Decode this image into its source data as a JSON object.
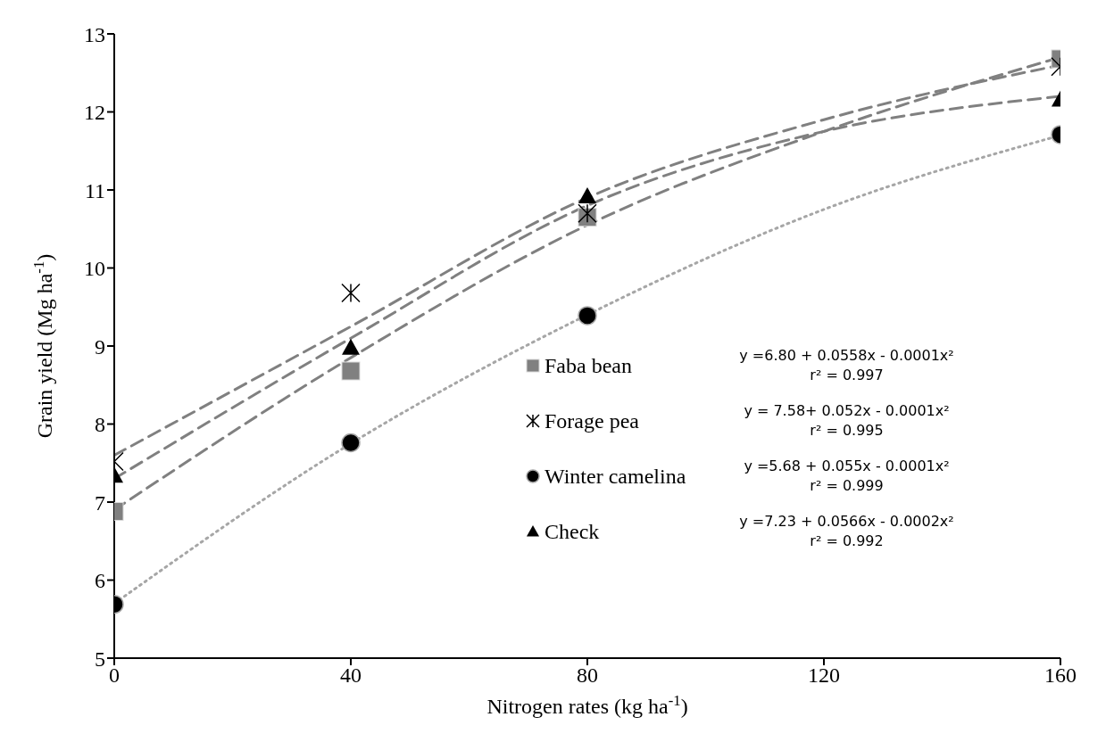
{
  "chart_data": {
    "type": "scatter",
    "xlabel": "Nitrogen rates (kg ha$^{-1}$)",
    "ylabel": "Grain yield (Mg ha$^{-1}$)",
    "x": [
      0,
      40,
      80,
      160
    ],
    "xlim": [
      0,
      160
    ],
    "xticks": [
      0,
      40,
      80,
      120,
      160
    ],
    "ylim": [
      5,
      13
    ],
    "yticks": [
      5,
      6,
      7,
      8,
      9,
      10,
      11,
      12,
      13
    ],
    "grid": false,
    "legend": "right",
    "series": [
      {
        "name": "Faba bean",
        "color": "#808080",
        "marker": "square",
        "values": [
          6.88,
          8.68,
          10.65,
          12.68
        ]
      },
      {
        "name": "Forage pea",
        "color": "#000000",
        "marker": "cross",
        "values": [
          7.52,
          9.68,
          10.7,
          12.58
        ]
      },
      {
        "name": "Winter camelina",
        "color": "#000000",
        "marker": "circle",
        "values": [
          5.69,
          7.76,
          9.39,
          11.71
        ]
      },
      {
        "name": "Check",
        "color": "#000000",
        "marker": "triangle",
        "values": [
          7.34,
          8.98,
          10.92,
          12.16
        ]
      },
      {
        "type": "line",
        "color": "#808080",
        "line_style": "dashed",
        "marker": "none",
        "x": [
          0,
          40,
          80,
          120,
          160
        ],
        "values": [
          6.9,
          8.85,
          10.55,
          11.75,
          12.7
        ]
      },
      {
        "type": "line",
        "color": "#808080",
        "line_style": "dashed",
        "marker": "none",
        "x": [
          0,
          40,
          80,
          120,
          160
        ],
        "values": [
          7.6,
          9.25,
          10.9,
          11.9,
          12.6
        ]
      },
      {
        "type": "line",
        "color": "#a6a6a6",
        "line_style": "dotted",
        "marker": "none",
        "x": [
          0,
          40,
          80,
          120,
          160
        ],
        "values": [
          5.7,
          7.75,
          9.4,
          10.75,
          11.7
        ]
      },
      {
        "type": "line",
        "color": "#808080",
        "line_style": "dashed",
        "marker": "none",
        "x": [
          0,
          40,
          80,
          120,
          160
        ],
        "values": [
          7.3,
          9.1,
          10.8,
          11.75,
          12.2
        ]
      }
    ],
    "annotations": [
      "y =6.80 + 0.0558x - 0.0001x²",
      "r² = 0.997",
      "y = 7.58+ 0.052x - 0.0001x²",
      "r² = 0.995",
      "y =5.68 + 0.055x - 0.0001x²",
      "r² = 0.999",
      "y =7.23 + 0.0566x - 0.0002x²",
      "r² = 0.992"
    ]
  }
}
